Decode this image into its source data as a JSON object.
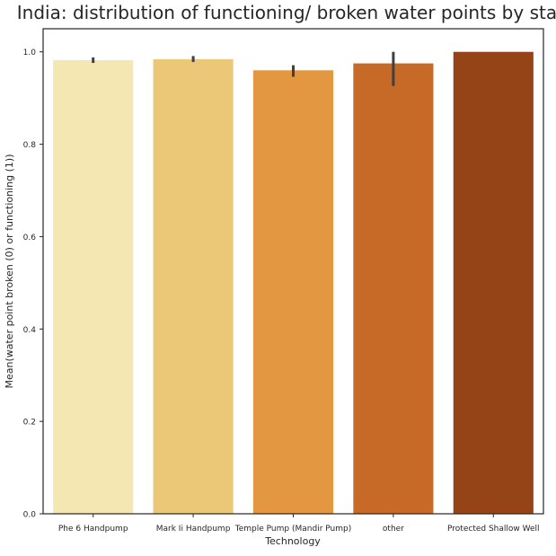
{
  "chart_data": {
    "type": "bar",
    "title": "India: distribution of functioning/ broken water points by state",
    "xlabel": "Technology",
    "ylabel": "Mean(water point broken (0) or functioning (1))",
    "ylim": [
      0,
      1.05
    ],
    "yticks": [
      "0.0",
      "0.2",
      "0.4",
      "0.6",
      "0.8",
      "1.0"
    ],
    "categories": [
      "Phe 6 Handpump",
      "Mark Ii Handpump",
      "Temple Pump (Mandir Pump)",
      "other",
      "Protected Shallow Well"
    ],
    "values": [
      0.982,
      0.984,
      0.96,
      0.975,
      1.0
    ],
    "error_bars": [
      [
        0.976,
        0.988
      ],
      [
        0.978,
        0.991
      ],
      [
        0.946,
        0.971
      ],
      [
        0.926,
        1.0
      ],
      [
        1.0,
        1.0
      ]
    ],
    "colors": [
      "#f5e7b1",
      "#ebc878",
      "#e29740",
      "#c76a28",
      "#954418"
    ],
    "grid": false,
    "legend": "none"
  }
}
